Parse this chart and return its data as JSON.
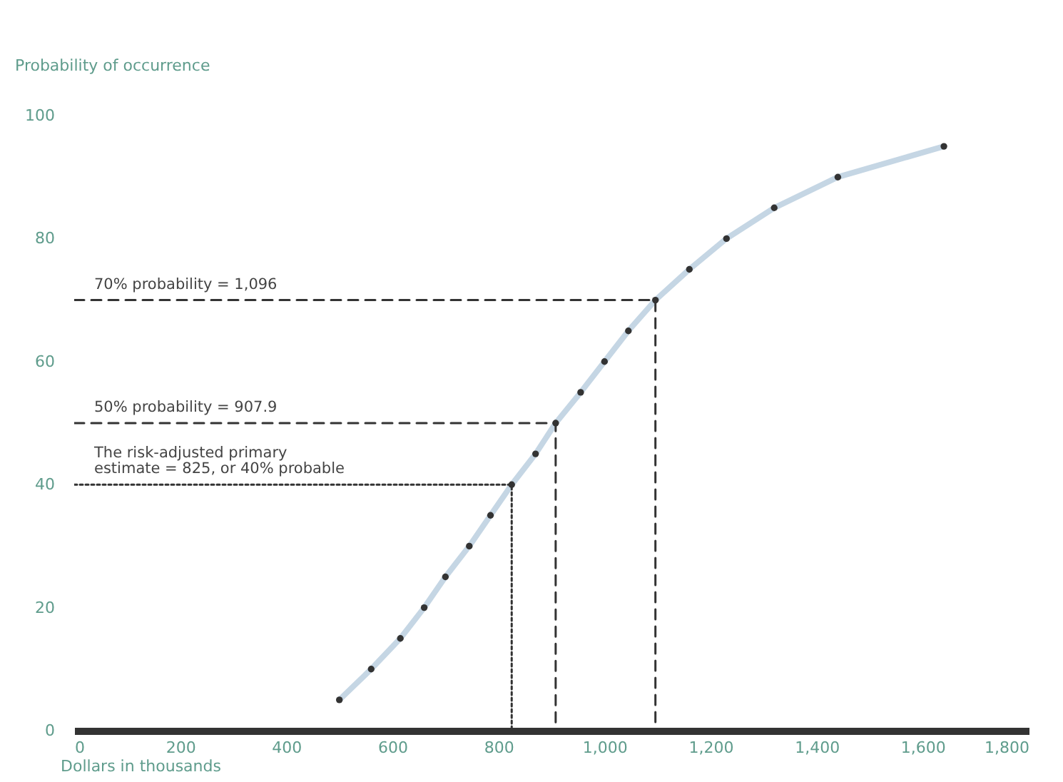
{
  "chart_data": {
    "type": "line",
    "xlabel": "Dollars in thousands",
    "ylabel": "Probability of occurrence",
    "xlim": [
      0,
      1800
    ],
    "ylim": [
      0,
      100
    ],
    "xticks": [
      0,
      200,
      400,
      600,
      800,
      {
        "value": 1000,
        "label": "1,000"
      },
      {
        "value": 1200,
        "label": "1,200"
      },
      {
        "value": 1400,
        "label": "1,400"
      },
      {
        "value": 1600,
        "label": "1,600"
      },
      {
        "value": 1800,
        "label": "1,800"
      }
    ],
    "yticks": [
      0,
      20,
      40,
      60,
      80,
      100
    ],
    "grid": false,
    "series": [
      {
        "color": "#c5d6e4",
        "line_style": "solid",
        "x": [
          500,
          560,
          615,
          660,
          700,
          745,
          785,
          825,
          870,
          907.9,
          955,
          1000,
          1045,
          1096,
          1160,
          1230,
          1320,
          1440,
          1640
        ],
        "values": [
          5,
          10,
          15,
          20,
          25,
          30,
          35,
          40,
          45,
          50,
          55,
          60,
          65,
          70,
          75,
          80,
          85,
          90,
          95
        ]
      },
      {
        "type": "scatter",
        "color": "#333333",
        "marker": "circle",
        "x": [
          500,
          560,
          615,
          660,
          700,
          745,
          785,
          825,
          870,
          907.9,
          955,
          1000,
          1045,
          1096,
          1160,
          1230,
          1320,
          1440,
          1640
        ],
        "values": [
          5,
          10,
          15,
          20,
          25,
          30,
          35,
          40,
          45,
          50,
          55,
          60,
          65,
          70,
          75,
          80,
          85,
          90,
          95
        ]
      },
      {
        "color": "#333333",
        "line_style": "dashed",
        "x": [
          0,
          1096,
          1096
        ],
        "values": [
          70,
          70,
          0
        ]
      },
      {
        "color": "#333333",
        "line_style": "dashed",
        "x": [
          0,
          907.9,
          907.9
        ],
        "values": [
          50,
          50,
          0
        ]
      },
      {
        "color": "#333333",
        "line_style": "dotted",
        "x": [
          0,
          825,
          825
        ],
        "values": [
          40,
          40,
          0
        ]
      }
    ],
    "annotations": [
      "70% probability = 1,096",
      "50% probability = 907.9",
      "The risk-adjusted primary\nestimate = 825, or 40% probable"
    ]
  }
}
